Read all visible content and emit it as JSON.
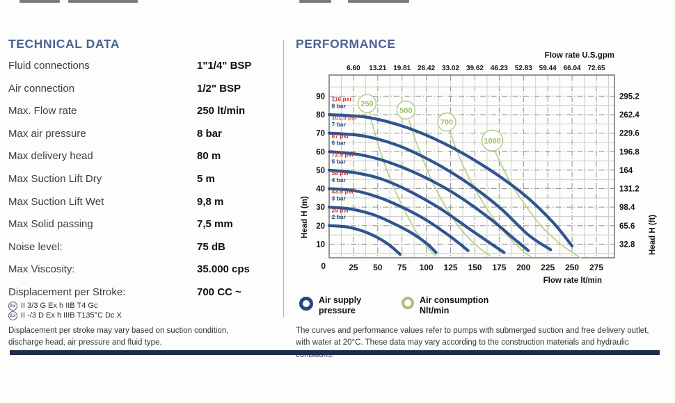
{
  "artifacts_note": "cropped text remnants from previous page section",
  "technical_data": {
    "title": "TECHNICAL DATA",
    "rows": [
      {
        "label": "Fluid connections",
        "value": "1\"1/4\" BSP"
      },
      {
        "label": "Air connection",
        "value": "1/2\" BSP"
      },
      {
        "label": "Max. Flow rate",
        "value": "250 lt/min"
      },
      {
        "label": "Max air pressure",
        "value": "8 bar"
      },
      {
        "label": "Max delivery head",
        "value": "80 m"
      },
      {
        "label": "Max Suction Lift Dry",
        "value": "5 m"
      },
      {
        "label": "Max Suction Lift Wet",
        "value": "9,8 m"
      },
      {
        "label": "Max Solid passing",
        "value": "7,5 mm"
      },
      {
        "label": "Noise level:",
        "value": "75 dB"
      },
      {
        "label": "Max Viscosity:",
        "value": "35.000 cps"
      },
      {
        "label": "Displacement per Stroke:",
        "value": "700 CC ~"
      }
    ],
    "atex_lines": [
      {
        "icon": "Ex",
        "text": "II 3/3 G Ex h IIB T4 Gc"
      },
      {
        "icon": "Ex",
        "text": "II -/3 D Ex h IIIB T135°C Dc X"
      }
    ],
    "footnote": "Displacement per stroke may vary based on suction condition, discharge head, air pressure and fluid type."
  },
  "performance": {
    "title": "PERFORMANCE",
    "legend": [
      {
        "marker_color": "#27477e",
        "ring_border": 5,
        "lines": "Air supply\npressure"
      },
      {
        "marker_color": "#a9c178",
        "ring_border": 4.5,
        "lines": "Air consumption\nNlt/min"
      }
    ],
    "footnote": "The curves and performance values refer to pumps with submerged suction and free delivery outlet, with water at 20°C. These data may vary according to the construction materials and hydraulic conditions."
  },
  "chart_data": {
    "type": "line",
    "title": "",
    "x_axis": {
      "label": "Flow rate  lt/min",
      "unit": "lt/min",
      "range": [
        0,
        293
      ],
      "major_ticks": [
        25,
        50,
        75,
        100,
        125,
        150,
        175,
        200,
        225,
        250,
        275
      ],
      "minor_step": 12.5,
      "origin_label": "0"
    },
    "x_axis_top": {
      "label": "Flow rate U.S.gpm",
      "unit": "U.S.gpm",
      "tick_labels": [
        "6.60",
        "13.21",
        "19.81",
        "26.42",
        "33.02",
        "39.62",
        "46.23",
        "52.83",
        "59.44",
        "66.04",
        "72.65"
      ]
    },
    "y_axis": {
      "label": "Head H (m)",
      "unit": "m",
      "range": [
        0,
        101
      ],
      "major_ticks": [
        10,
        20,
        30,
        40,
        50,
        60,
        70,
        80,
        90
      ],
      "minor_step": 5
    },
    "y_axis_right": {
      "label": "Head H (ft)",
      "unit": "ft",
      "tick_labels": [
        "32.8",
        "65.6",
        "98.4",
        "131.2",
        "164",
        "196.8",
        "229.6",
        "262.4",
        "295.2"
      ]
    },
    "series": [
      {
        "name": "2 bar",
        "psi": "29 psi",
        "points": [
          [
            0,
            20
          ],
          [
            18,
            19.3
          ],
          [
            35,
            17
          ],
          [
            50,
            13.5
          ],
          [
            62,
            9.5
          ],
          [
            73,
            4.5
          ]
        ]
      },
      {
        "name": "3 bar",
        "psi": "43.5 psi",
        "points": [
          [
            0,
            30
          ],
          [
            22,
            29
          ],
          [
            45,
            26
          ],
          [
            65,
            21.5
          ],
          [
            85,
            16
          ],
          [
            100,
            10.5
          ],
          [
            110,
            5.5
          ]
        ]
      },
      {
        "name": "4 bar",
        "psi": "58 psi",
        "points": [
          [
            0,
            40
          ],
          [
            25,
            39
          ],
          [
            50,
            35.5
          ],
          [
            75,
            30
          ],
          [
            100,
            23
          ],
          [
            125,
            14
          ],
          [
            143,
            6.5
          ]
        ]
      },
      {
        "name": "5 bar",
        "psi": "72.5 psi",
        "points": [
          [
            0,
            50
          ],
          [
            28,
            48.5
          ],
          [
            55,
            45
          ],
          [
            85,
            38
          ],
          [
            115,
            29
          ],
          [
            145,
            18
          ],
          [
            170,
            9
          ],
          [
            180,
            5.5
          ]
        ]
      },
      {
        "name": "6 bar",
        "psi": "87 psi",
        "points": [
          [
            0,
            60
          ],
          [
            30,
            58.5
          ],
          [
            60,
            54.5
          ],
          [
            95,
            47
          ],
          [
            130,
            37
          ],
          [
            165,
            24
          ],
          [
            190,
            13
          ],
          [
            205,
            6.5
          ]
        ]
      },
      {
        "name": "7 bar",
        "psi": "101.5 psi",
        "points": [
          [
            0,
            70
          ],
          [
            35,
            68.5
          ],
          [
            70,
            63.5
          ],
          [
            105,
            55
          ],
          [
            140,
            44
          ],
          [
            175,
            30
          ],
          [
            205,
            15
          ],
          [
            228,
            7
          ]
        ]
      },
      {
        "name": "8 bar",
        "psi": "116 psi",
        "points": [
          [
            0,
            80
          ],
          [
            40,
            78.5
          ],
          [
            80,
            73
          ],
          [
            120,
            64
          ],
          [
            160,
            52
          ],
          [
            200,
            37
          ],
          [
            230,
            22
          ],
          [
            250,
            9
          ]
        ]
      }
    ],
    "consumption_curves": [
      {
        "label": "250",
        "circle": [
          39,
          86
        ],
        "r": 13,
        "points": [
          [
            41,
            82
          ],
          [
            47,
            70
          ],
          [
            54,
            58
          ],
          [
            63,
            45
          ],
          [
            74,
            32
          ],
          [
            87,
            19
          ],
          [
            100,
            9
          ],
          [
            110,
            3.5
          ]
        ]
      },
      {
        "label": "500",
        "circle": [
          79,
          82.5
        ],
        "r": 13,
        "points": [
          [
            82,
            77
          ],
          [
            89,
            66
          ],
          [
            97,
            55
          ],
          [
            107,
            43
          ],
          [
            119,
            31
          ],
          [
            134,
            19
          ],
          [
            152,
            9
          ],
          [
            166,
            3.5
          ]
        ]
      },
      {
        "label": "700",
        "circle": [
          121,
          76
        ],
        "r": 13,
        "points": [
          [
            124,
            71
          ],
          [
            131,
            61
          ],
          [
            140,
            50
          ],
          [
            151,
            39
          ],
          [
            165,
            27
          ],
          [
            181,
            16
          ],
          [
            198,
            7
          ],
          [
            208,
            3
          ]
        ]
      },
      {
        "label": "1000",
        "circle": [
          168,
          66
        ],
        "r": 15,
        "points": [
          [
            171,
            60
          ],
          [
            179,
            51
          ],
          [
            189,
            41
          ],
          [
            202,
            31
          ],
          [
            218,
            20
          ],
          [
            236,
            11
          ],
          [
            253,
            4.5
          ],
          [
            261,
            2
          ]
        ]
      }
    ],
    "colors": {
      "supply_curve": "#30548f",
      "consumption_curve": "#b6cf8e",
      "consumption_text": "#97bd60",
      "psi_text": "#c23b2e",
      "bar_text": "#27477e",
      "grid_minor": "#cdcdcd",
      "grid_major": "#8f8f8f",
      "frame": "#5f5f5f"
    },
    "legend_position": "bottom",
    "grid": true
  }
}
